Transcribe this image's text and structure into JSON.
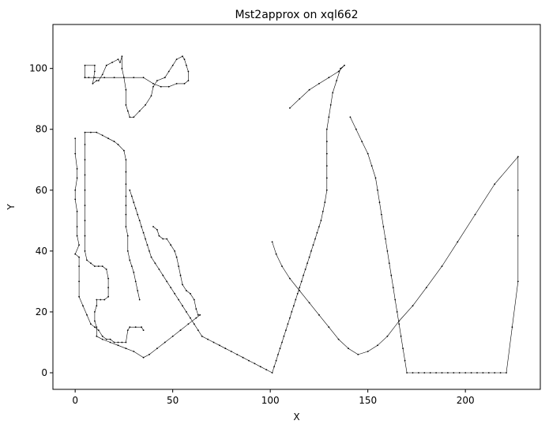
{
  "chart_data": {
    "type": "line",
    "title": "Mst2approx on xql662",
    "xlabel": "X",
    "ylabel": "Y",
    "xlim": [
      -11.4,
      238.4
    ],
    "ylim": [
      -5.45,
      114.45
    ],
    "xticks": [
      0,
      50,
      100,
      150,
      200
    ],
    "yticks": [
      0,
      20,
      40,
      60,
      80,
      100
    ],
    "grid": false,
    "legend": "none",
    "line_color": "#000000",
    "marker_color": "#000000",
    "series": [
      {
        "tour": [
          [
            5,
            97
          ],
          [
            5,
            101
          ],
          [
            10,
            101
          ],
          [
            10,
            99
          ],
          [
            9,
            95
          ],
          [
            11,
            96
          ],
          [
            12,
            96
          ],
          [
            14,
            98
          ],
          [
            16,
            101
          ],
          [
            19,
            102
          ],
          [
            22,
            103
          ],
          [
            23,
            102
          ],
          [
            24,
            104
          ],
          [
            24,
            100
          ],
          [
            25,
            97
          ],
          [
            26,
            93
          ],
          [
            26,
            88
          ],
          [
            27,
            86
          ],
          [
            28,
            84
          ],
          [
            30,
            84
          ],
          [
            33,
            86
          ],
          [
            36,
            88
          ],
          [
            39,
            91
          ],
          [
            40,
            94
          ],
          [
            42,
            96
          ],
          [
            46,
            97
          ],
          [
            48,
            99
          ],
          [
            50,
            101
          ],
          [
            52,
            103
          ],
          [
            55,
            104
          ],
          [
            56,
            103
          ],
          [
            57,
            101
          ],
          [
            58,
            99
          ],
          [
            58,
            96
          ],
          [
            56,
            95
          ],
          [
            52,
            95
          ],
          [
            48,
            94
          ],
          [
            44,
            94
          ],
          [
            40,
            95
          ],
          [
            35,
            97
          ],
          [
            30,
            97
          ],
          [
            25,
            97
          ],
          [
            20,
            97
          ],
          [
            15,
            97
          ],
          [
            10,
            97
          ],
          [
            7,
            97
          ],
          [
            5,
            97
          ]
        ],
        "west_columns": [
          [
            0,
            77
          ],
          [
            0,
            72
          ],
          [
            1,
            67
          ],
          [
            1,
            64
          ],
          [
            0,
            60
          ],
          [
            0,
            57
          ],
          [
            1,
            53
          ],
          [
            1,
            48
          ],
          [
            1,
            45
          ],
          [
            2,
            42
          ],
          [
            0,
            39
          ],
          [
            2,
            38
          ],
          [
            2,
            35
          ],
          [
            2,
            30
          ],
          [
            2,
            25
          ],
          [
            4,
            22
          ],
          [
            6,
            19
          ],
          [
            8,
            16
          ],
          [
            10,
            15
          ],
          [
            12,
            14
          ],
          [
            14,
            12
          ],
          [
            16,
            11
          ],
          [
            18,
            11
          ],
          [
            20,
            10
          ],
          [
            22,
            10
          ],
          [
            24,
            10
          ],
          [
            26,
            10
          ],
          [
            27,
            14
          ],
          [
            28,
            15
          ],
          [
            31,
            15
          ],
          [
            34,
            15
          ],
          [
            35,
            14
          ]
        ],
        "mid_columns": [
          [
            40,
            48
          ],
          [
            42,
            47
          ],
          [
            43,
            45
          ],
          [
            45,
            44
          ],
          [
            47,
            44
          ],
          [
            49,
            42
          ],
          [
            51,
            40
          ],
          [
            52,
            38
          ],
          [
            53,
            35
          ],
          [
            54,
            32
          ],
          [
            55,
            29
          ],
          [
            57,
            27
          ],
          [
            59,
            26
          ],
          [
            61,
            24
          ],
          [
            62,
            21
          ],
          [
            63,
            19
          ],
          [
            64,
            19
          ],
          [
            62,
            18
          ],
          [
            58,
            16
          ],
          [
            54,
            14
          ],
          [
            50,
            12
          ],
          [
            46,
            10
          ],
          [
            42,
            8
          ],
          [
            38,
            6
          ],
          [
            35,
            5
          ],
          [
            30,
            7
          ],
          [
            26,
            8
          ],
          [
            22,
            9
          ],
          [
            18,
            10
          ],
          [
            14,
            11
          ],
          [
            11,
            12
          ],
          [
            11,
            15
          ],
          [
            10,
            17
          ],
          [
            10,
            20
          ],
          [
            11,
            22
          ],
          [
            11,
            24
          ],
          [
            13,
            24
          ],
          [
            15,
            24
          ],
          [
            17,
            25
          ],
          [
            17,
            28
          ],
          [
            17,
            31
          ],
          [
            16,
            34
          ],
          [
            14,
            35
          ],
          [
            12,
            35
          ],
          [
            10,
            35
          ],
          [
            8,
            36
          ],
          [
            6,
            37
          ],
          [
            5,
            40
          ],
          [
            5,
            45
          ],
          [
            5,
            50
          ],
          [
            5,
            55
          ],
          [
            5,
            60
          ],
          [
            5,
            65
          ],
          [
            5,
            70
          ],
          [
            5,
            75
          ],
          [
            5,
            79
          ],
          [
            8,
            79
          ],
          [
            11,
            79
          ],
          [
            14,
            78
          ],
          [
            17,
            77
          ],
          [
            20,
            76
          ],
          [
            22,
            75
          ],
          [
            25,
            73
          ],
          [
            26,
            70
          ],
          [
            26,
            66
          ],
          [
            26,
            62
          ],
          [
            26,
            58
          ],
          [
            26,
            55
          ],
          [
            26,
            52
          ],
          [
            26,
            48
          ],
          [
            27,
            45
          ],
          [
            27,
            40
          ],
          [
            28,
            37
          ],
          [
            29,
            35
          ],
          [
            30,
            33
          ],
          [
            31,
            30
          ],
          [
            32,
            27
          ],
          [
            33,
            24
          ]
        ],
        "east_columns": [
          [
            110,
            87
          ],
          [
            115,
            90
          ],
          [
            120,
            93
          ],
          [
            125,
            95
          ],
          [
            130,
            97
          ],
          [
            135,
            99
          ],
          [
            138,
            101
          ],
          [
            136,
            100
          ],
          [
            134,
            96
          ],
          [
            132,
            92
          ],
          [
            131,
            88
          ],
          [
            130,
            84
          ],
          [
            129,
            80
          ],
          [
            129,
            76
          ],
          [
            129,
            72
          ],
          [
            129,
            68
          ],
          [
            129,
            64
          ],
          [
            129,
            60
          ],
          [
            128,
            56
          ],
          [
            127,
            53
          ],
          [
            126,
            50
          ],
          [
            125,
            48
          ],
          [
            124,
            46
          ],
          [
            123,
            44
          ],
          [
            122,
            42
          ],
          [
            121,
            40
          ],
          [
            120,
            38
          ],
          [
            119,
            36
          ],
          [
            118,
            34
          ],
          [
            117,
            32
          ],
          [
            116,
            30
          ],
          [
            115,
            28
          ],
          [
            114,
            26
          ],
          [
            113,
            24
          ],
          [
            112,
            22
          ],
          [
            111,
            20
          ],
          [
            110,
            18
          ],
          [
            109,
            16
          ],
          [
            108,
            14
          ],
          [
            107,
            12
          ],
          [
            106,
            10
          ],
          [
            105,
            8
          ],
          [
            104,
            6
          ],
          [
            103,
            4
          ],
          [
            102,
            2
          ],
          [
            101,
            0
          ],
          [
            98,
            1
          ],
          [
            95,
            2
          ],
          [
            92,
            3
          ],
          [
            89,
            4
          ],
          [
            86,
            5
          ],
          [
            83,
            6
          ],
          [
            80,
            7
          ],
          [
            77,
            8
          ],
          [
            74,
            9
          ],
          [
            71,
            10
          ],
          [
            68,
            11
          ],
          [
            65,
            12
          ],
          [
            63,
            14
          ],
          [
            61,
            16
          ],
          [
            59,
            18
          ],
          [
            57,
            20
          ],
          [
            55,
            22
          ],
          [
            53,
            24
          ],
          [
            51,
            26
          ],
          [
            49,
            28
          ],
          [
            47,
            30
          ],
          [
            45,
            32
          ],
          [
            43,
            34
          ],
          [
            41,
            36
          ],
          [
            39,
            38
          ],
          [
            38,
            40
          ],
          [
            37,
            42
          ],
          [
            36,
            44
          ],
          [
            35,
            46
          ],
          [
            34,
            48
          ],
          [
            33,
            50
          ],
          [
            32,
            52
          ],
          [
            31,
            54
          ],
          [
            30,
            56
          ],
          [
            29,
            58
          ],
          [
            28,
            60
          ]
        ],
        "far_east": [
          [
            141,
            84
          ],
          [
            144,
            80
          ],
          [
            147,
            76
          ],
          [
            150,
            72
          ],
          [
            152,
            68
          ],
          [
            154,
            64
          ],
          [
            155,
            60
          ],
          [
            156,
            56
          ],
          [
            157,
            52
          ],
          [
            158,
            48
          ],
          [
            159,
            44
          ],
          [
            160,
            40
          ],
          [
            161,
            36
          ],
          [
            162,
            32
          ],
          [
            163,
            28
          ],
          [
            164,
            24
          ],
          [
            165,
            20
          ],
          [
            166,
            16
          ],
          [
            167,
            12
          ],
          [
            168,
            8
          ],
          [
            169,
            4
          ],
          [
            170,
            0
          ],
          [
            173,
            0
          ],
          [
            176,
            0
          ],
          [
            179,
            0
          ],
          [
            182,
            0
          ],
          [
            185,
            0
          ],
          [
            188,
            0
          ],
          [
            191,
            0
          ],
          [
            194,
            0
          ],
          [
            197,
            0
          ],
          [
            200,
            0
          ],
          [
            203,
            0
          ],
          [
            206,
            0
          ],
          [
            209,
            0
          ],
          [
            212,
            0
          ],
          [
            215,
            0
          ],
          [
            218,
            0
          ],
          [
            221,
            0
          ],
          [
            224,
            15
          ],
          [
            227,
            30
          ],
          [
            227,
            45
          ],
          [
            227,
            60
          ],
          [
            227,
            71
          ],
          [
            215,
            62
          ],
          [
            205,
            52
          ],
          [
            196,
            43
          ],
          [
            188,
            35
          ],
          [
            180,
            28
          ],
          [
            173,
            22
          ],
          [
            166,
            17
          ],
          [
            160,
            12
          ],
          [
            155,
            9
          ],
          [
            150,
            7
          ],
          [
            145,
            6
          ],
          [
            140,
            8
          ],
          [
            135,
            11
          ],
          [
            130,
            15
          ],
          [
            125,
            19
          ],
          [
            120,
            23
          ],
          [
            115,
            27
          ],
          [
            110,
            31
          ],
          [
            106,
            35
          ],
          [
            103,
            39
          ],
          [
            101,
            43
          ]
        ]
      }
    ]
  }
}
